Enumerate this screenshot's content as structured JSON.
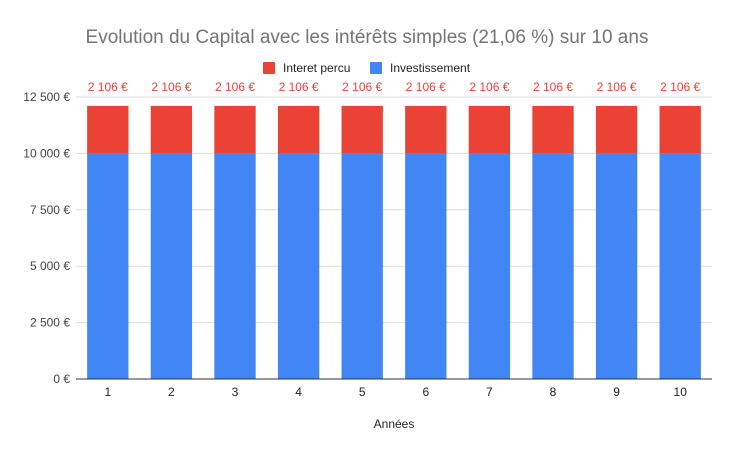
{
  "chart_data": {
    "type": "bar",
    "stacked": true,
    "title": "Evolution du Capital avec les intérêts simples (21,06 %) sur 10 ans",
    "xlabel": "Années",
    "ylabel": "",
    "categories": [
      "1",
      "2",
      "3",
      "4",
      "5",
      "6",
      "7",
      "8",
      "9",
      "10"
    ],
    "series": [
      {
        "name": "Investissement",
        "color": "#4285f4",
        "values": [
          10000,
          10000,
          10000,
          10000,
          10000,
          10000,
          10000,
          10000,
          10000,
          10000
        ]
      },
      {
        "name": "Interet percu",
        "color": "#ea4335",
        "values": [
          2106,
          2106,
          2106,
          2106,
          2106,
          2106,
          2106,
          2106,
          2106,
          2106
        ],
        "data_labels": [
          "2 106 €",
          "2 106 €",
          "2 106 €",
          "2 106 €",
          "2 106 €",
          "2 106 €",
          "2 106 €",
          "2 106 €",
          "2 106 €",
          "2 106 €"
        ]
      }
    ],
    "legend": {
      "position": "top",
      "entries": [
        "Interet percu",
        "Investissement"
      ]
    },
    "ylim": [
      0,
      12500
    ],
    "yticks": [
      0,
      2500,
      5000,
      7500,
      10000,
      12500
    ],
    "ytick_labels": [
      "0 €",
      "2 500 €",
      "5 000 €",
      "7 500 €",
      "10 000 €",
      "12 500 €"
    ],
    "grid": true
  }
}
